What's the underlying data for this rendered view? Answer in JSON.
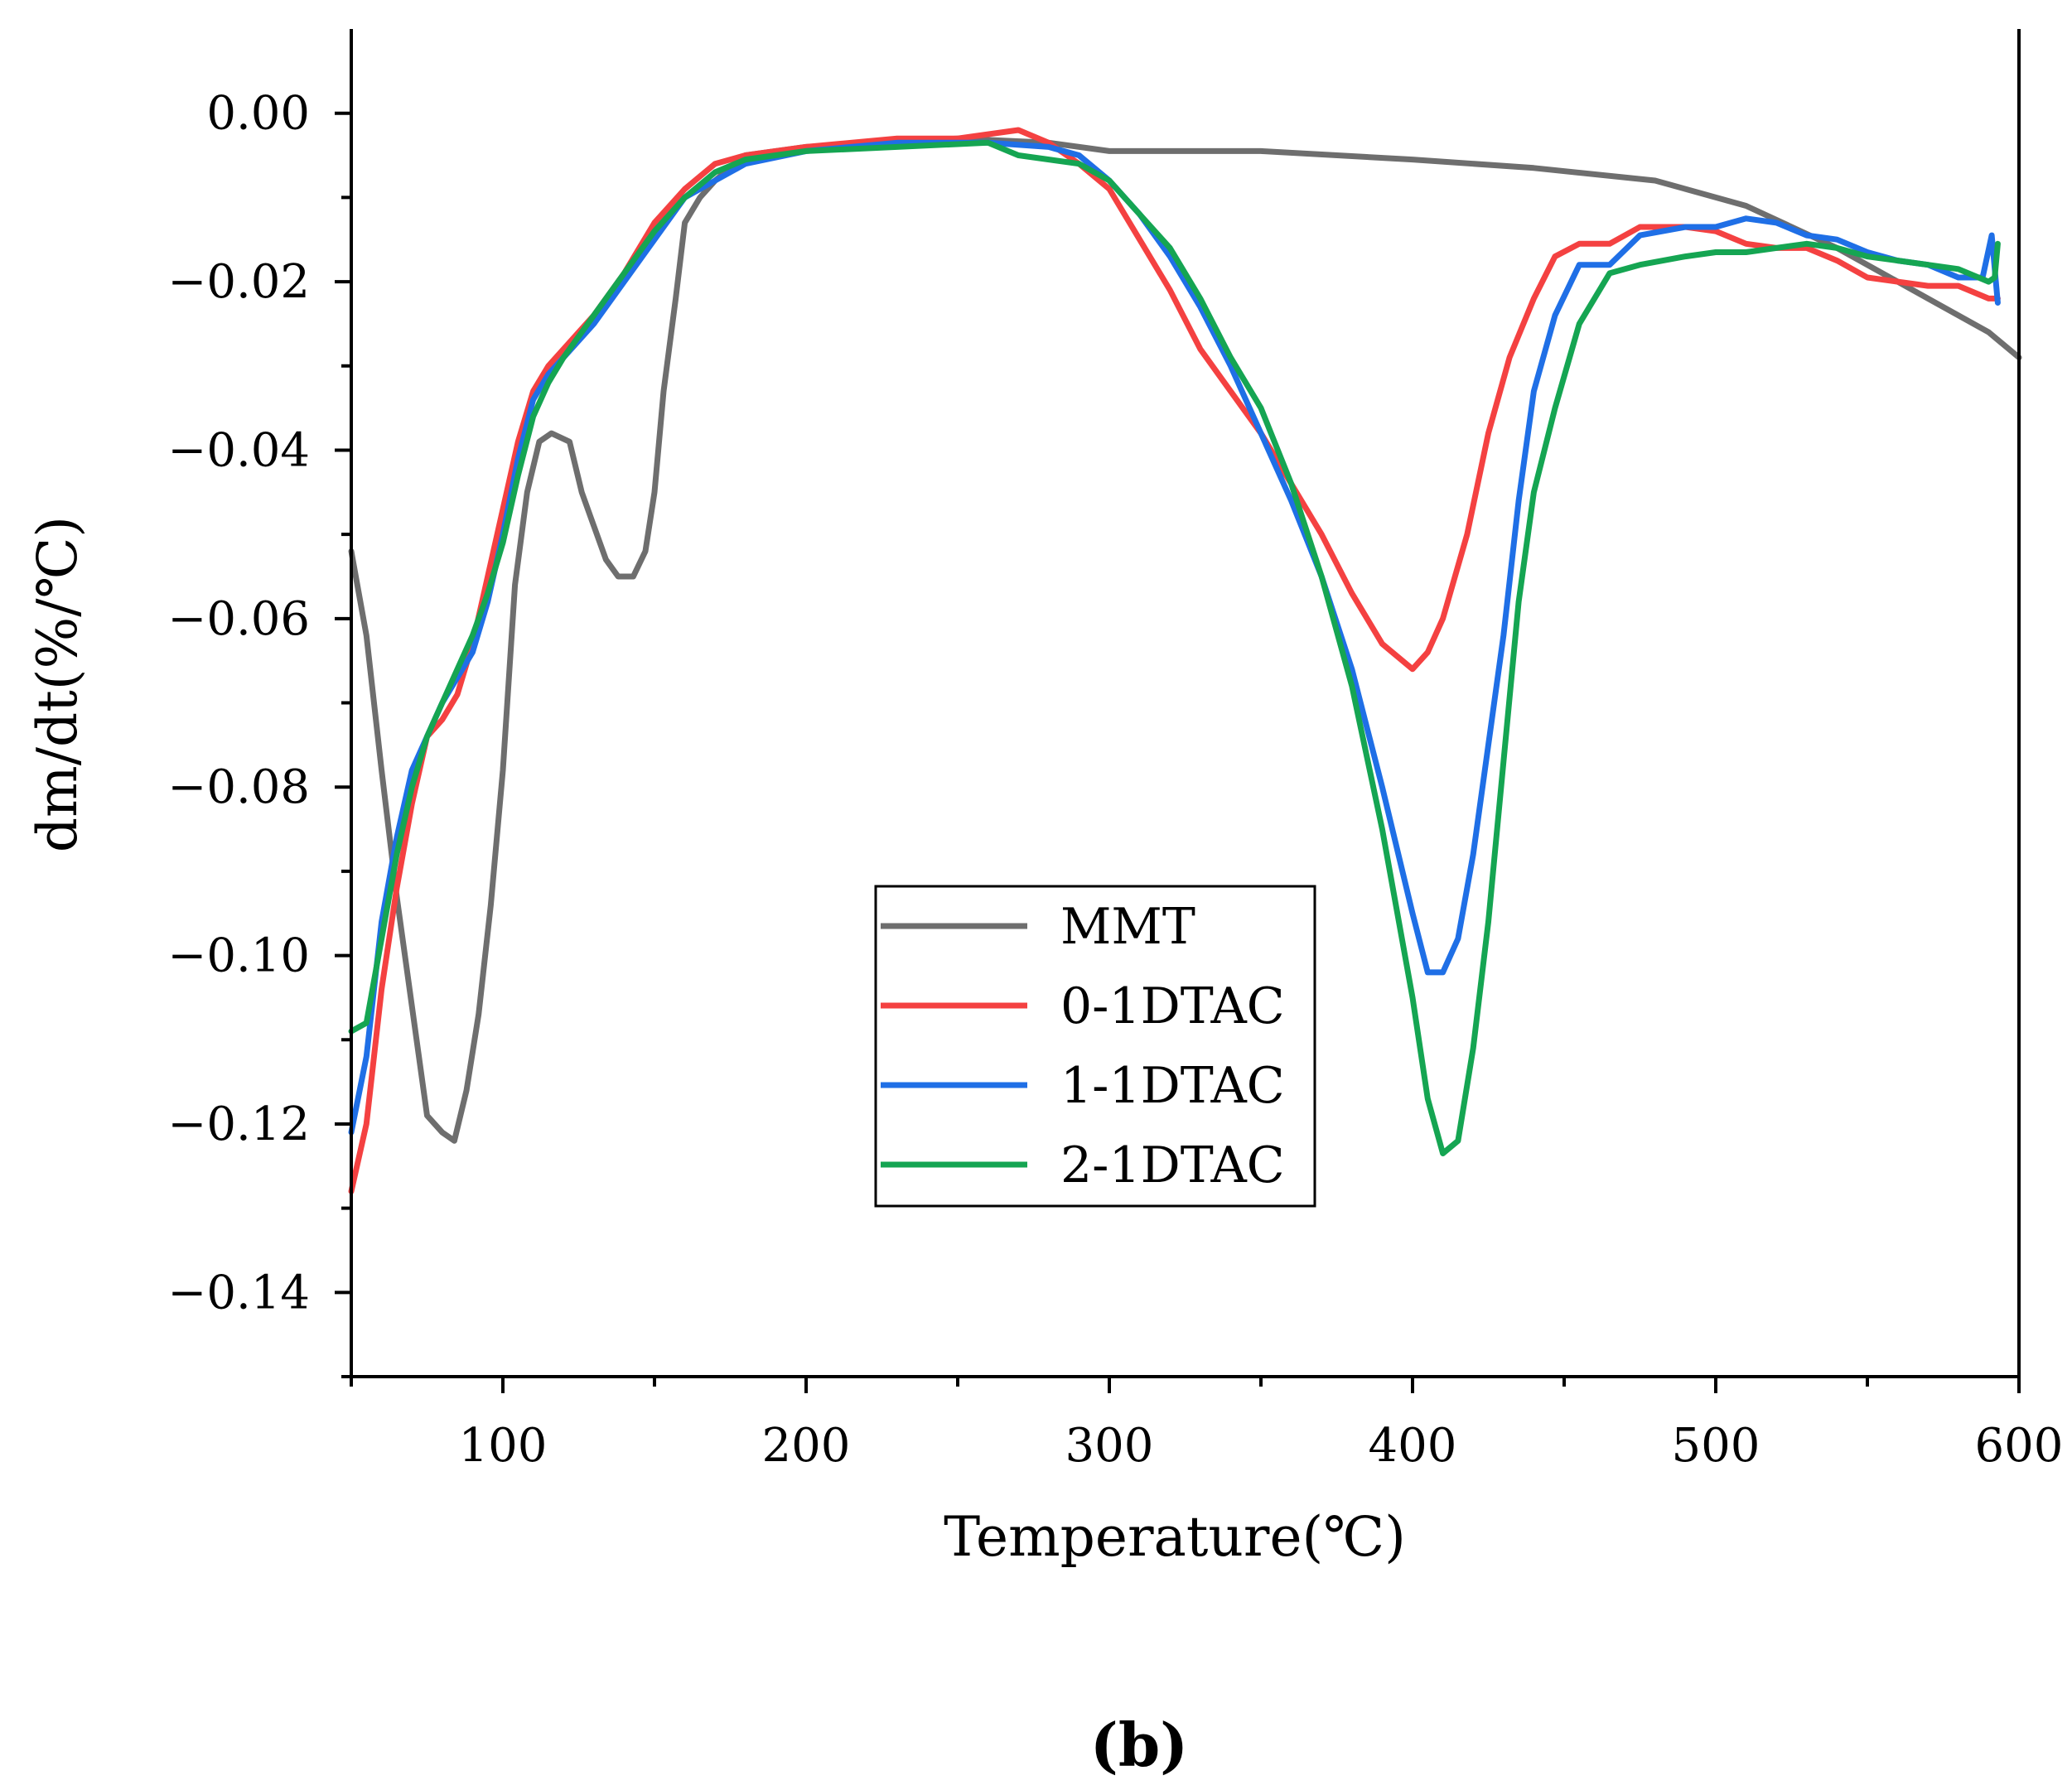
{
  "chart_data": {
    "type": "line",
    "title": "",
    "caption": "(b)",
    "xlabel": "Temperature(℃)",
    "ylabel": "dm/dt(%/℃)",
    "xlim": [
      50,
      600
    ],
    "ylim": [
      -0.15,
      0.01
    ],
    "xticks": [
      100,
      200,
      300,
      400,
      500,
      600
    ],
    "xtick_labels": [
      "100",
      "200",
      "300",
      "400",
      "500",
      "600"
    ],
    "xminor": [
      50,
      150,
      250,
      350,
      450,
      550
    ],
    "yticks": [
      0.0,
      -0.02,
      -0.04,
      -0.06,
      -0.08,
      -0.1,
      -0.12,
      -0.14
    ],
    "ytick_labels": [
      "0.00",
      "−0.02",
      "−0.04",
      "−0.06",
      "−0.08",
      "−0.10",
      "−0.12",
      "−0.14"
    ],
    "yminor": [
      -0.01,
      -0.03,
      -0.05,
      -0.07,
      -0.09,
      -0.11,
      -0.13,
      -0.15
    ],
    "legend_position": "center-bottom",
    "series": [
      {
        "name": "MMT",
        "color": "#6e6e6e",
        "points": [
          [
            50,
            -0.052
          ],
          [
            55,
            -0.062
          ],
          [
            60,
            -0.078
          ],
          [
            65,
            -0.093
          ],
          [
            70,
            -0.106
          ],
          [
            75,
            -0.119
          ],
          [
            80,
            -0.121
          ],
          [
            84,
            -0.122
          ],
          [
            88,
            -0.116
          ],
          [
            92,
            -0.107
          ],
          [
            96,
            -0.094
          ],
          [
            100,
            -0.078
          ],
          [
            104,
            -0.056
          ],
          [
            108,
            -0.045
          ],
          [
            112,
            -0.039
          ],
          [
            116,
            -0.038
          ],
          [
            122,
            -0.039
          ],
          [
            126,
            -0.045
          ],
          [
            130,
            -0.049
          ],
          [
            134,
            -0.053
          ],
          [
            138,
            -0.055
          ],
          [
            143,
            -0.055
          ],
          [
            147,
            -0.052
          ],
          [
            150,
            -0.045
          ],
          [
            153,
            -0.033
          ],
          [
            157,
            -0.022
          ],
          [
            160,
            -0.013
          ],
          [
            165,
            -0.01
          ],
          [
            170,
            -0.008
          ],
          [
            180,
            -0.005
          ],
          [
            200,
            -0.004
          ],
          [
            250,
            -0.003
          ],
          [
            280,
            -0.0035
          ],
          [
            300,
            -0.0045
          ],
          [
            350,
            -0.0045
          ],
          [
            400,
            -0.0055
          ],
          [
            440,
            -0.0065
          ],
          [
            480,
            -0.008
          ],
          [
            510,
            -0.011
          ],
          [
            540,
            -0.016
          ],
          [
            570,
            -0.022
          ],
          [
            590,
            -0.026
          ],
          [
            600,
            -0.029
          ]
        ]
      },
      {
        "name": "0-1DTAC",
        "color": "#f44141",
        "points": [
          [
            50,
            -0.128
          ],
          [
            55,
            -0.12
          ],
          [
            60,
            -0.104
          ],
          [
            65,
            -0.092
          ],
          [
            70,
            -0.082
          ],
          [
            75,
            -0.074
          ],
          [
            80,
            -0.072
          ],
          [
            85,
            -0.069
          ],
          [
            90,
            -0.063
          ],
          [
            95,
            -0.055
          ],
          [
            100,
            -0.047
          ],
          [
            105,
            -0.039
          ],
          [
            110,
            -0.033
          ],
          [
            115,
            -0.03
          ],
          [
            120,
            -0.028
          ],
          [
            130,
            -0.024
          ],
          [
            140,
            -0.019
          ],
          [
            150,
            -0.013
          ],
          [
            160,
            -0.009
          ],
          [
            170,
            -0.006
          ],
          [
            180,
            -0.005
          ],
          [
            200,
            -0.004
          ],
          [
            230,
            -0.003
          ],
          [
            250,
            -0.003
          ],
          [
            270,
            -0.002
          ],
          [
            280,
            -0.0035
          ],
          [
            290,
            -0.006
          ],
          [
            300,
            -0.009
          ],
          [
            310,
            -0.015
          ],
          [
            320,
            -0.021
          ],
          [
            330,
            -0.028
          ],
          [
            340,
            -0.033
          ],
          [
            350,
            -0.038
          ],
          [
            360,
            -0.044
          ],
          [
            370,
            -0.05
          ],
          [
            380,
            -0.057
          ],
          [
            390,
            -0.063
          ],
          [
            400,
            -0.066
          ],
          [
            405,
            -0.064
          ],
          [
            410,
            -0.06
          ],
          [
            418,
            -0.05
          ],
          [
            425,
            -0.038
          ],
          [
            432,
            -0.029
          ],
          [
            440,
            -0.022
          ],
          [
            447,
            -0.017
          ],
          [
            455,
            -0.0155
          ],
          [
            465,
            -0.0155
          ],
          [
            475,
            -0.0135
          ],
          [
            490,
            -0.0135
          ],
          [
            500,
            -0.014
          ],
          [
            510,
            -0.0155
          ],
          [
            520,
            -0.016
          ],
          [
            530,
            -0.016
          ],
          [
            540,
            -0.0175
          ],
          [
            550,
            -0.0195
          ],
          [
            560,
            -0.02
          ],
          [
            570,
            -0.0205
          ],
          [
            580,
            -0.0205
          ],
          [
            590,
            -0.022
          ],
          [
            593,
            -0.022
          ]
        ]
      },
      {
        "name": "1-1DTAC",
        "color": "#1f6fe6",
        "points": [
          [
            50,
            -0.121
          ],
          [
            55,
            -0.112
          ],
          [
            60,
            -0.096
          ],
          [
            65,
            -0.086
          ],
          [
            70,
            -0.078
          ],
          [
            75,
            -0.074
          ],
          [
            80,
            -0.07
          ],
          [
            85,
            -0.067
          ],
          [
            90,
            -0.064
          ],
          [
            95,
            -0.058
          ],
          [
            100,
            -0.05
          ],
          [
            105,
            -0.041
          ],
          [
            110,
            -0.034
          ],
          [
            115,
            -0.031
          ],
          [
            120,
            -0.029
          ],
          [
            130,
            -0.025
          ],
          [
            140,
            -0.02
          ],
          [
            150,
            -0.015
          ],
          [
            160,
            -0.01
          ],
          [
            170,
            -0.008
          ],
          [
            180,
            -0.006
          ],
          [
            200,
            -0.0045
          ],
          [
            230,
            -0.0035
          ],
          [
            260,
            -0.0035
          ],
          [
            280,
            -0.004
          ],
          [
            290,
            -0.005
          ],
          [
            300,
            -0.008
          ],
          [
            310,
            -0.012
          ],
          [
            320,
            -0.017
          ],
          [
            330,
            -0.023
          ],
          [
            340,
            -0.03
          ],
          [
            350,
            -0.038
          ],
          [
            360,
            -0.046
          ],
          [
            370,
            -0.055
          ],
          [
            380,
            -0.066
          ],
          [
            390,
            -0.08
          ],
          [
            400,
            -0.095
          ],
          [
            405,
            -0.102
          ],
          [
            410,
            -0.102
          ],
          [
            415,
            -0.098
          ],
          [
            420,
            -0.088
          ],
          [
            425,
            -0.075
          ],
          [
            430,
            -0.062
          ],
          [
            435,
            -0.046
          ],
          [
            440,
            -0.033
          ],
          [
            447,
            -0.024
          ],
          [
            455,
            -0.018
          ],
          [
            465,
            -0.018
          ],
          [
            475,
            -0.0145
          ],
          [
            490,
            -0.0135
          ],
          [
            500,
            -0.0135
          ],
          [
            510,
            -0.0125
          ],
          [
            520,
            -0.013
          ],
          [
            530,
            -0.0145
          ],
          [
            540,
            -0.015
          ],
          [
            550,
            -0.0165
          ],
          [
            560,
            -0.0175
          ],
          [
            570,
            -0.018
          ],
          [
            580,
            -0.0195
          ],
          [
            588,
            -0.0195
          ],
          [
            591,
            -0.0145
          ],
          [
            593,
            -0.0225
          ]
        ]
      },
      {
        "name": "2-1DTAC",
        "color": "#15a552",
        "points": [
          [
            50,
            -0.109
          ],
          [
            55,
            -0.108
          ],
          [
            60,
            -0.098
          ],
          [
            65,
            -0.088
          ],
          [
            70,
            -0.08
          ],
          [
            75,
            -0.074
          ],
          [
            80,
            -0.07
          ],
          [
            85,
            -0.066
          ],
          [
            90,
            -0.062
          ],
          [
            95,
            -0.057
          ],
          [
            100,
            -0.051
          ],
          [
            105,
            -0.043
          ],
          [
            110,
            -0.036
          ],
          [
            115,
            -0.032
          ],
          [
            120,
            -0.029
          ],
          [
            130,
            -0.024
          ],
          [
            140,
            -0.019
          ],
          [
            150,
            -0.014
          ],
          [
            160,
            -0.01
          ],
          [
            170,
            -0.007
          ],
          [
            180,
            -0.0055
          ],
          [
            200,
            -0.0045
          ],
          [
            230,
            -0.004
          ],
          [
            260,
            -0.0035
          ],
          [
            270,
            -0.005
          ],
          [
            290,
            -0.006
          ],
          [
            300,
            -0.008
          ],
          [
            310,
            -0.012
          ],
          [
            320,
            -0.016
          ],
          [
            330,
            -0.022
          ],
          [
            340,
            -0.029
          ],
          [
            350,
            -0.035
          ],
          [
            360,
            -0.044
          ],
          [
            370,
            -0.055
          ],
          [
            380,
            -0.068
          ],
          [
            390,
            -0.085
          ],
          [
            400,
            -0.105
          ],
          [
            405,
            -0.117
          ],
          [
            410,
            -0.1235
          ],
          [
            415,
            -0.122
          ],
          [
            420,
            -0.111
          ],
          [
            425,
            -0.096
          ],
          [
            430,
            -0.077
          ],
          [
            435,
            -0.058
          ],
          [
            440,
            -0.045
          ],
          [
            447,
            -0.035
          ],
          [
            455,
            -0.025
          ],
          [
            465,
            -0.019
          ],
          [
            475,
            -0.018
          ],
          [
            490,
            -0.017
          ],
          [
            500,
            -0.0165
          ],
          [
            510,
            -0.0165
          ],
          [
            520,
            -0.016
          ],
          [
            530,
            -0.0155
          ],
          [
            540,
            -0.016
          ],
          [
            550,
            -0.017
          ],
          [
            560,
            -0.0175
          ],
          [
            570,
            -0.018
          ],
          [
            580,
            -0.0185
          ],
          [
            590,
            -0.02
          ],
          [
            592,
            -0.0195
          ],
          [
            593,
            -0.0155
          ]
        ]
      }
    ]
  }
}
